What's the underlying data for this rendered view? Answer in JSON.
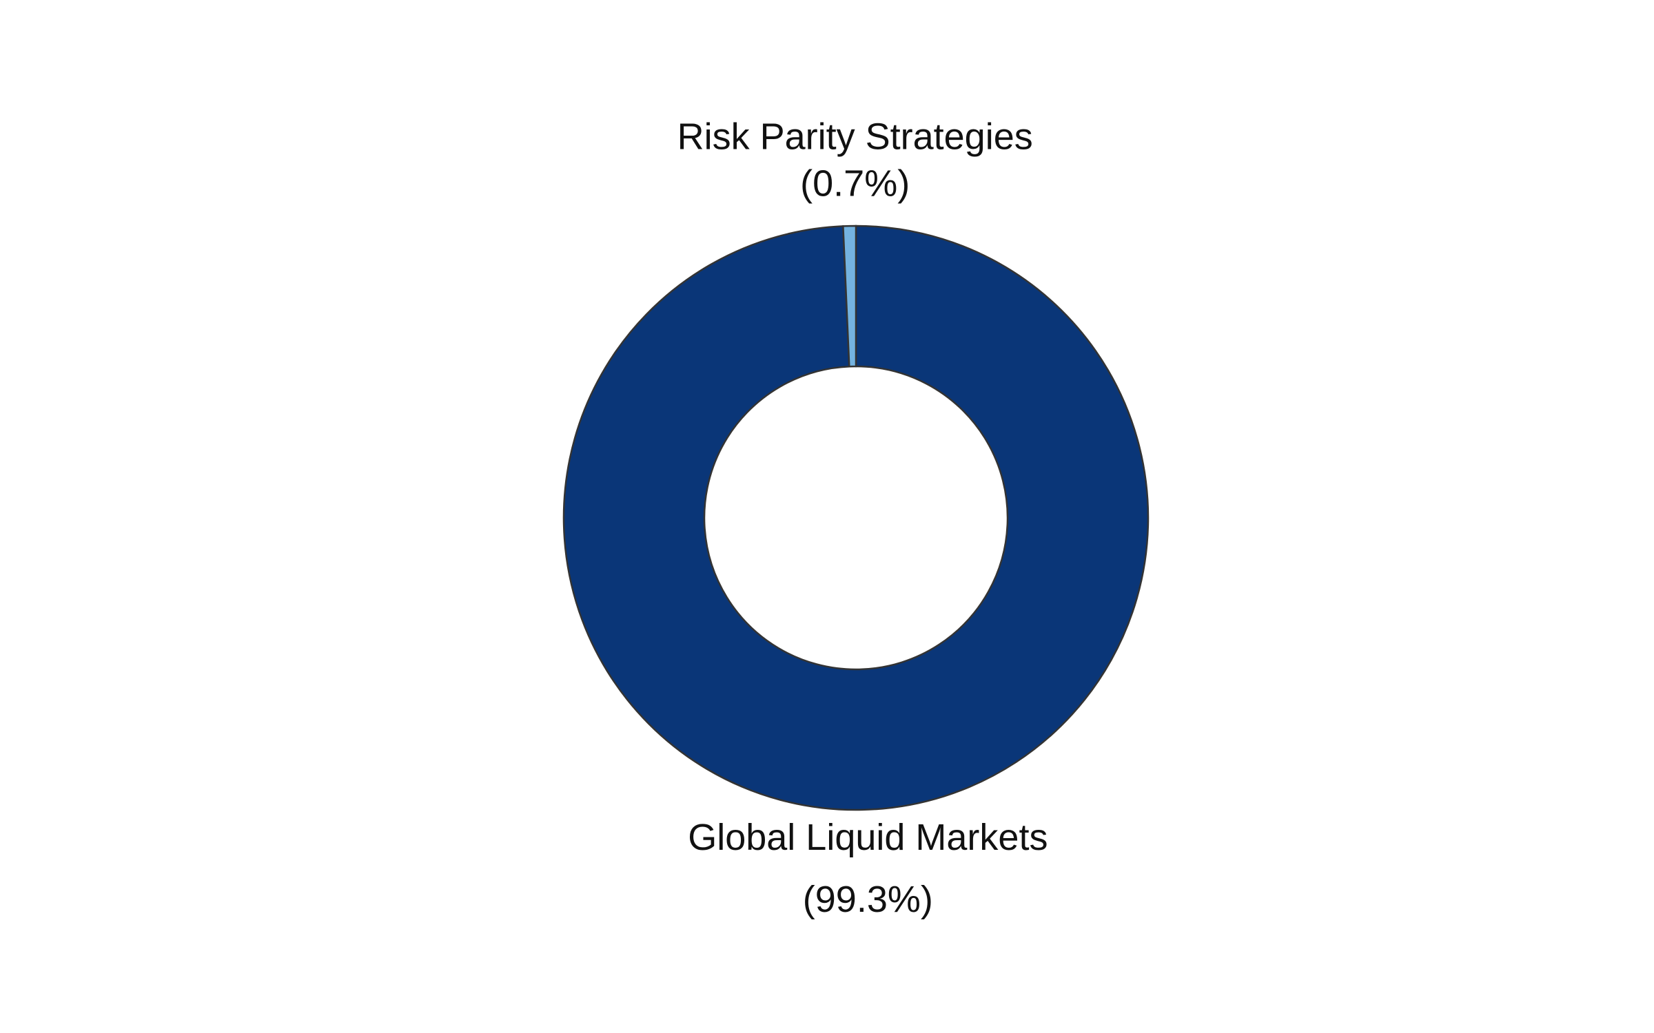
{
  "chart_data": {
    "type": "donut",
    "categories": [
      "Global Liquid Markets",
      "Risk Parity Strategies"
    ],
    "values": [
      99.3,
      0.7
    ],
    "value_labels": [
      "(99.3%)",
      "(0.7%)"
    ],
    "colors": [
      "#0a3678",
      "#74b3e0"
    ]
  }
}
